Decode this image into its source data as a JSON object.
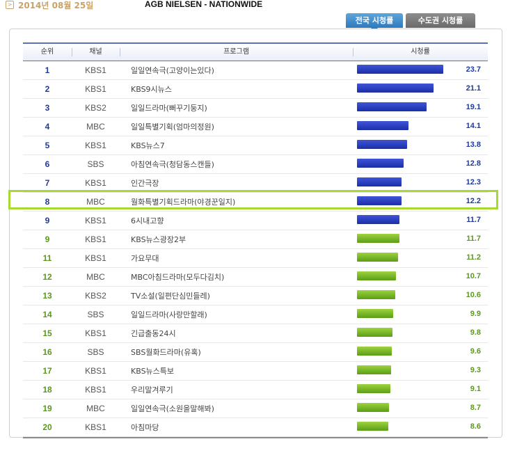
{
  "header": {
    "date_icon": ">",
    "date": "2014년 08월 25일",
    "source_title": "AGB NIELSEN - NATIONWIDE"
  },
  "tabs": [
    {
      "label": "전국 시청률",
      "active": true
    },
    {
      "label": "수도권 시청률",
      "active": false
    }
  ],
  "table": {
    "columns": [
      "순위",
      "채널",
      "프로그램",
      "시청률"
    ],
    "rows": [
      {
        "rank": "1",
        "channel": "KBS1",
        "program": "일일연속극(고양이는있다)",
        "rating": "23.7",
        "bar": "blue"
      },
      {
        "rank": "2",
        "channel": "KBS1",
        "program": "KBS9시뉴스",
        "rating": "21.1",
        "bar": "blue"
      },
      {
        "rank": "3",
        "channel": "KBS2",
        "program": "일일드라마(뻐꾸기둥지)",
        "rating": "19.1",
        "bar": "blue"
      },
      {
        "rank": "4",
        "channel": "MBC",
        "program": "일일특별기획(엄마의정원)",
        "rating": "14.1",
        "bar": "blue"
      },
      {
        "rank": "5",
        "channel": "KBS1",
        "program": "KBS뉴스7",
        "rating": "13.8",
        "bar": "blue"
      },
      {
        "rank": "6",
        "channel": "SBS",
        "program": "아침연속극(청담동스캔들)",
        "rating": "12.8",
        "bar": "blue"
      },
      {
        "rank": "7",
        "channel": "KBS1",
        "program": "인간극장",
        "rating": "12.3",
        "bar": "blue"
      },
      {
        "rank": "8",
        "channel": "MBC",
        "program": "월화특별기획드라마(야경꾼일지)",
        "rating": "12.2",
        "bar": "blue"
      },
      {
        "rank": "9",
        "channel": "KBS1",
        "program": "6시내고향",
        "rating": "11.7",
        "bar": "blue"
      },
      {
        "rank": "9",
        "channel": "KBS1",
        "program": "KBS뉴스광장2부",
        "rating": "11.7",
        "bar": "green"
      },
      {
        "rank": "11",
        "channel": "KBS1",
        "program": "가요무대",
        "rating": "11.2",
        "bar": "green"
      },
      {
        "rank": "12",
        "channel": "MBC",
        "program": "MBC아침드라마(모두다김치)",
        "rating": "10.7",
        "bar": "green"
      },
      {
        "rank": "13",
        "channel": "KBS2",
        "program": "TV소설(일편단심민들레)",
        "rating": "10.6",
        "bar": "green"
      },
      {
        "rank": "14",
        "channel": "SBS",
        "program": "일일드라마(사랑만할래)",
        "rating": "9.9",
        "bar": "green"
      },
      {
        "rank": "15",
        "channel": "KBS1",
        "program": "긴급출동24시",
        "rating": "9.8",
        "bar": "green"
      },
      {
        "rank": "16",
        "channel": "SBS",
        "program": "SBS월화드라마(유혹)",
        "rating": "9.6",
        "bar": "green"
      },
      {
        "rank": "17",
        "channel": "KBS1",
        "program": "KBS뉴스특보",
        "rating": "9.3",
        "bar": "green"
      },
      {
        "rank": "18",
        "channel": "KBS1",
        "program": "우리말겨루기",
        "rating": "9.1",
        "bar": "green"
      },
      {
        "rank": "19",
        "channel": "MBC",
        "program": "일일연속극(소원을말해봐)",
        "rating": "8.7",
        "bar": "green"
      },
      {
        "rank": "20",
        "channel": "KBS1",
        "program": "아침마당",
        "rating": "8.6",
        "bar": "green"
      }
    ],
    "highlighted_rank_index": 7
  },
  "colors": {
    "blue_bar": "#2238bd",
    "green_bar": "#7fbf2a",
    "blue_text": "#1f3a9e",
    "green_text": "#5a9a1a",
    "highlight_border": "#a8d832"
  }
}
